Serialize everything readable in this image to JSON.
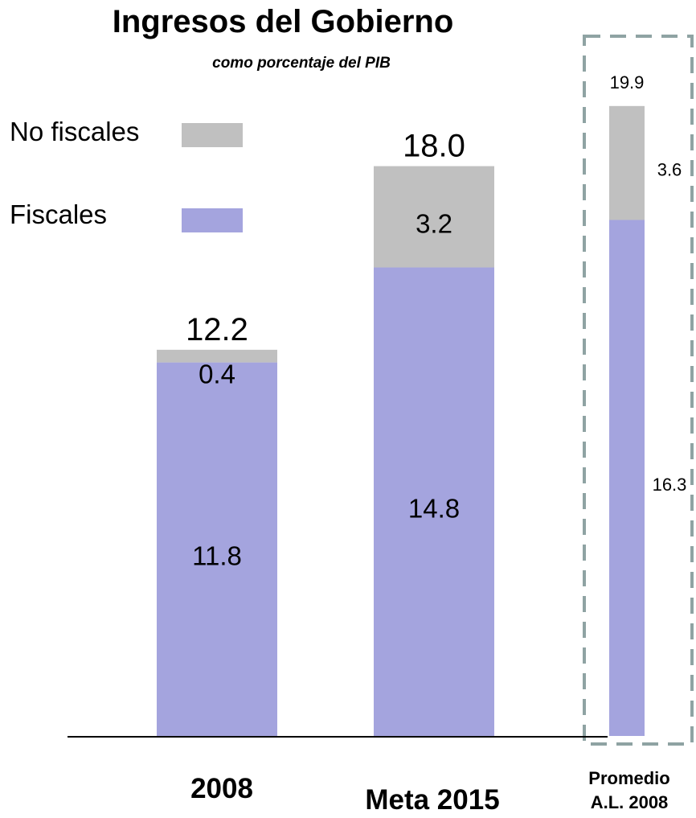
{
  "chart_data": {
    "type": "bar",
    "stacked": true,
    "title": "Ingresos del Gobierno",
    "subtitle": "como porcentaje del PIB",
    "categories": [
      "2008",
      "Meta 2015",
      "Promedio A.L. 2008"
    ],
    "category_lines": [
      [
        "2008"
      ],
      [
        "Meta 2015"
      ],
      [
        "Promedio",
        "A.L. 2008"
      ]
    ],
    "series": [
      {
        "name": "Fiscales",
        "values": [
          11.8,
          14.8,
          16.3
        ],
        "labels": [
          "11.8",
          "14.8",
          "16.3"
        ],
        "color": "#a4a4de"
      },
      {
        "name": "No fiscales",
        "values": [
          0.4,
          3.2,
          3.6
        ],
        "labels": [
          "0.4",
          "3.2",
          "3.6"
        ],
        "color": "#c0c0c0"
      }
    ],
    "totals": [
      12.2,
      18.0,
      19.9
    ],
    "total_labels": [
      "12.2",
      "18.0",
      "19.9"
    ],
    "legend": [
      {
        "label": "No fiscales",
        "color": "#c0c0c0"
      },
      {
        "label": "Fiscales",
        "color": "#a4a4de"
      }
    ],
    "legend_position": "top-left",
    "highlighted_category": "Promedio A.L. 2008",
    "highlight_color": "#8fa3a3",
    "xlabel": "",
    "ylabel": "",
    "ylim": [
      0,
      20.2
    ],
    "grid": false,
    "axis_color": "#000000"
  }
}
